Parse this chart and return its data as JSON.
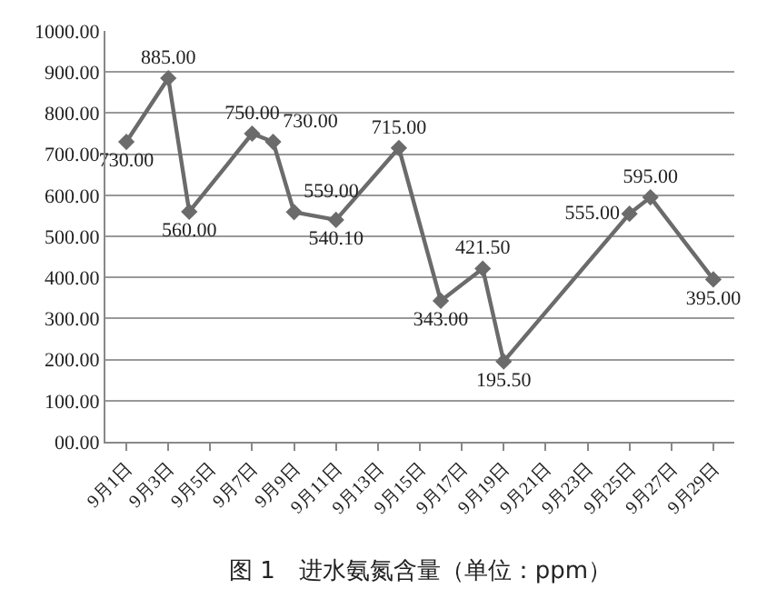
{
  "chart_data": {
    "type": "line",
    "title": "图 1　进水氨氮含量（单位：ppm）",
    "x": [
      "--09-01",
      "--09-03",
      "--09-04",
      "--09-07",
      "--09-08",
      "--09-09",
      "--09-11",
      "--09-14",
      "--09-16",
      "--09-18",
      "--09-19",
      "--09-25",
      "--09-26",
      "--09-29"
    ],
    "series": [
      {
        "color": "#6b6b6b",
        "values": [
          730,
          885,
          560,
          750,
          730,
          559,
          540.1,
          715,
          343,
          421.5,
          195.5,
          555,
          595,
          395
        ]
      }
    ],
    "value_labels": [
      "730.00",
      "885.00",
      "560.00",
      "750.00",
      "730.00",
      "559.00",
      "540.10",
      "715.00",
      "343.00",
      "421.50",
      "195.50",
      "555.00",
      "595.00",
      "395.00"
    ],
    "xlim": [
      "--08-31",
      "--09-30"
    ],
    "xticks": [
      {
        "value": "--09-01",
        "label": "9月1日"
      },
      {
        "value": "--09-03",
        "label": "9月3日"
      },
      {
        "value": "--09-05",
        "label": "9月5日"
      },
      {
        "value": "--09-07",
        "label": "9月7日"
      },
      {
        "value": "--09-09",
        "label": "9月9日"
      },
      {
        "value": "--09-11",
        "label": "9月11日"
      },
      {
        "value": "--09-13",
        "label": "9月13日"
      },
      {
        "value": "--09-15",
        "label": "9月15日"
      },
      {
        "value": "--09-17",
        "label": "9月17日"
      },
      {
        "value": "--09-19",
        "label": "9月19日"
      },
      {
        "value": "--09-21",
        "label": "9月21日"
      },
      {
        "value": "--09-23",
        "label": "9月23日"
      },
      {
        "value": "--09-25",
        "label": "9月25日"
      },
      {
        "value": "--09-27",
        "label": "9月27日"
      },
      {
        "value": "--09-29",
        "label": "9月29日"
      }
    ],
    "ylim": [
      0,
      1000
    ],
    "yticks": [
      {
        "value": 0,
        "label": "00.00"
      },
      {
        "value": 100,
        "label": "100.00"
      },
      {
        "value": 200,
        "label": "200.00"
      },
      {
        "value": 300,
        "label": "300.00"
      },
      {
        "value": 400,
        "label": "400.00"
      },
      {
        "value": 500,
        "label": "500.00"
      },
      {
        "value": 600,
        "label": "600.00"
      },
      {
        "value": 700,
        "label": "700.00"
      },
      {
        "value": 800,
        "label": "800.00"
      },
      {
        "value": 900,
        "label": "900.00"
      },
      {
        "value": 1000,
        "label": "1000.00"
      }
    ],
    "grid": "y",
    "marker": "diamond",
    "line_style": "solid",
    "legend": false
  }
}
